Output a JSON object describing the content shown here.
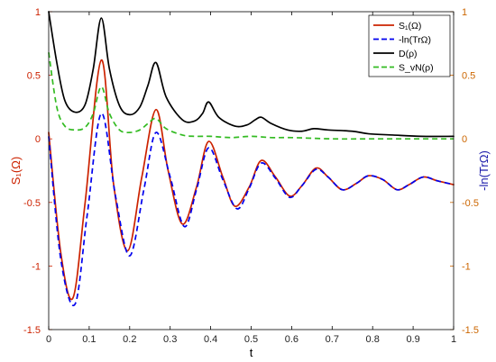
{
  "chart_data": {
    "type": "line",
    "xlabel": "t",
    "ylabel_left": "S₁(Ω)",
    "ylabel_right": "-ln(TrΩ)",
    "xlim": [
      0,
      1
    ],
    "ylim_left": [
      -1.5,
      1
    ],
    "ylim_right": [
      -1.5,
      1
    ],
    "x_ticks": [
      "0",
      "0.1",
      "0.2",
      "0.3",
      "0.4",
      "0.5",
      "0.6",
      "0.7",
      "0.8",
      "0.9",
      "1"
    ],
    "y_ticks_left": [
      "1",
      "0.5",
      "0",
      "-0.5",
      "-1",
      "-1.5"
    ],
    "y_ticks_right": [
      "1",
      "0.5",
      "0",
      "-0.5",
      "-1",
      "-1.5"
    ],
    "grid": false,
    "legend_position": "top-right",
    "legend": [
      {
        "label": "S₁(Ω)",
        "color": "#cc2200",
        "style": "solid"
      },
      {
        "label": "-ln(TrΩ)",
        "color": "#0000ee",
        "style": "dashed"
      },
      {
        "label": "D(ρ)",
        "color": "#000000",
        "style": "solid"
      },
      {
        "label": "S_vN(ρ)",
        "color": "#33bb22",
        "style": "dashed"
      }
    ],
    "colors": {
      "left_axis": "#cc2200",
      "right_axis": "#cc6600",
      "right_label": "#1a1aaa"
    },
    "series": [
      {
        "name": "S₁(Ω)",
        "color": "#cc2200",
        "style": "solid",
        "x": [
          0,
          0.03,
          0.06,
          0.09,
          0.13,
          0.16,
          0.195,
          0.23,
          0.265,
          0.295,
          0.33,
          0.365,
          0.395,
          0.43,
          0.46,
          0.495,
          0.525,
          0.56,
          0.595,
          0.625,
          0.66,
          0.69,
          0.725,
          0.76,
          0.79,
          0.825,
          0.86,
          0.89,
          0.925,
          0.96,
          1.0
        ],
        "y": [
          0.05,
          -0.9,
          -1.25,
          -0.5,
          0.62,
          -0.35,
          -0.88,
          -0.3,
          0.23,
          -0.25,
          -0.67,
          -0.38,
          -0.02,
          -0.3,
          -0.53,
          -0.38,
          -0.17,
          -0.3,
          -0.45,
          -0.37,
          -0.23,
          -0.3,
          -0.4,
          -0.35,
          -0.29,
          -0.32,
          -0.4,
          -0.36,
          -0.3,
          -0.33,
          -0.36
        ]
      },
      {
        "name": "-ln(TrΩ)",
        "color": "#0000ee",
        "style": "dashed",
        "x": [
          0,
          0.03,
          0.065,
          0.095,
          0.13,
          0.165,
          0.2,
          0.235,
          0.265,
          0.3,
          0.335,
          0.365,
          0.395,
          0.43,
          0.465,
          0.495,
          0.525,
          0.56,
          0.595,
          0.625,
          0.66,
          0.69,
          0.725,
          0.76,
          0.79,
          0.825,
          0.86,
          0.89,
          0.925,
          0.96,
          1.0
        ],
        "y": [
          0.02,
          -0.95,
          -1.3,
          -0.6,
          0.2,
          -0.45,
          -0.92,
          -0.4,
          0.05,
          -0.3,
          -0.69,
          -0.4,
          -0.07,
          -0.32,
          -0.55,
          -0.39,
          -0.19,
          -0.31,
          -0.46,
          -0.37,
          -0.24,
          -0.3,
          -0.4,
          -0.35,
          -0.29,
          -0.32,
          -0.4,
          -0.36,
          -0.3,
          -0.33,
          -0.36
        ]
      },
      {
        "name": "D(ρ)",
        "color": "#000000",
        "style": "solid",
        "x": [
          0,
          0.02,
          0.04,
          0.065,
          0.09,
          0.11,
          0.13,
          0.15,
          0.175,
          0.2,
          0.225,
          0.245,
          0.265,
          0.29,
          0.33,
          0.36,
          0.38,
          0.395,
          0.42,
          0.46,
          0.49,
          0.51,
          0.525,
          0.55,
          0.59,
          0.625,
          0.655,
          0.69,
          0.75,
          0.79,
          0.85,
          0.92,
          1.0
        ],
        "y": [
          1.0,
          0.6,
          0.3,
          0.21,
          0.27,
          0.55,
          0.95,
          0.55,
          0.26,
          0.19,
          0.25,
          0.42,
          0.6,
          0.33,
          0.15,
          0.14,
          0.2,
          0.29,
          0.17,
          0.1,
          0.11,
          0.15,
          0.17,
          0.12,
          0.07,
          0.06,
          0.08,
          0.07,
          0.06,
          0.04,
          0.03,
          0.02,
          0.02
        ]
      },
      {
        "name": "S_vN(ρ)",
        "color": "#33bb22",
        "style": "dashed",
        "x": [
          0,
          0.02,
          0.04,
          0.065,
          0.09,
          0.11,
          0.13,
          0.15,
          0.175,
          0.2,
          0.225,
          0.245,
          0.265,
          0.29,
          0.33,
          0.36,
          0.4,
          0.45,
          0.5,
          0.55,
          0.6,
          0.7,
          0.8,
          0.9,
          1.0
        ],
        "y": [
          0.68,
          0.25,
          0.1,
          0.07,
          0.09,
          0.2,
          0.41,
          0.2,
          0.07,
          0.05,
          0.07,
          0.12,
          0.16,
          0.08,
          0.03,
          0.02,
          0.02,
          0.01,
          0.02,
          0.01,
          0.01,
          0.0,
          0.0,
          0.0,
          0.0
        ]
      }
    ]
  }
}
